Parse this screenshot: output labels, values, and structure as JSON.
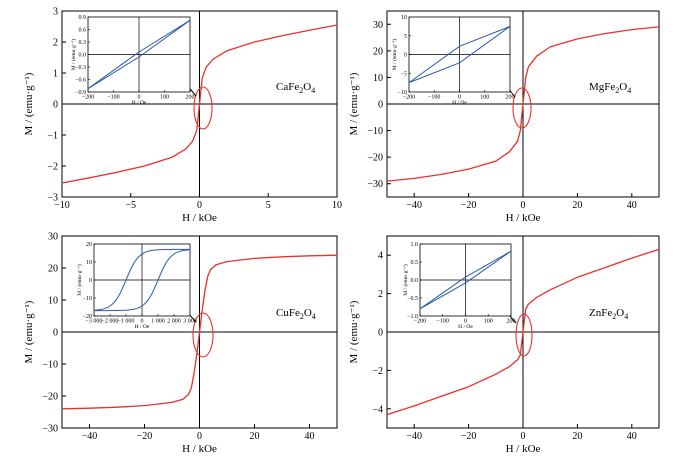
{
  "figure": {
    "ylabel": "M / (emu·g⁻¹)",
    "xlabel": "H / kOe",
    "inset_ylabel": "M / (emu·g⁻¹)",
    "inset_xlabel": "H / Oe"
  },
  "chart_data": [
    {
      "type": "line",
      "panel": "CaFe2O4",
      "material": {
        "main": "CaFe",
        "s1": "2",
        "mid": "O",
        "s2": "4"
      },
      "xlim": [
        -10,
        10
      ],
      "ylim": [
        -3,
        3
      ],
      "xticks": [
        -10,
        -5,
        0,
        5,
        10
      ],
      "yticks": [
        -3,
        -2,
        -1,
        0,
        1,
        2,
        3
      ],
      "colors": {
        "curve": "#e8312a",
        "inset_curve": "#2a5aa8"
      },
      "series": [
        {
          "x": [
            -10,
            -8,
            -6,
            -4,
            -2,
            -1,
            -0.5,
            -0.2,
            0,
            0.2,
            0.5,
            1,
            2,
            4,
            6,
            8,
            10
          ],
          "y": [
            -2.55,
            -2.38,
            -2.2,
            -2.0,
            -1.72,
            -1.45,
            -1.2,
            -0.85,
            0,
            0.85,
            1.2,
            1.45,
            1.72,
            2.0,
            2.2,
            2.38,
            2.55
          ]
        }
      ],
      "inset": {
        "xlim": [
          -200,
          200
        ],
        "ylim": [
          -0.9,
          0.9
        ],
        "xticks": [
          -200,
          -100,
          0,
          100,
          200
        ],
        "yticks": [
          -0.9,
          -0.6,
          -0.3,
          0.0,
          0.3,
          0.6,
          0.9
        ],
        "xtick_labels": [
          "-200",
          "-100",
          "0",
          "100",
          "200"
        ],
        "ytick_labels": [
          "-0.9",
          "-0.6",
          "-0.3",
          "0.0",
          "0.3",
          "0.6",
          "0.9"
        ],
        "loop_width": 0.06,
        "series": [
          {
            "x": [
              -200,
              200
            ],
            "y": [
              -0.82,
              0.82
            ]
          }
        ]
      }
    },
    {
      "type": "line",
      "panel": "MgFe2O4",
      "material": {
        "main": "MgFe",
        "s1": "2",
        "mid": "O",
        "s2": "4"
      },
      "xlim": [
        -50,
        50
      ],
      "ylim": [
        -35,
        35
      ],
      "xticks": [
        -40,
        -20,
        0,
        20,
        40
      ],
      "yticks": [
        -30,
        -20,
        -10,
        0,
        10,
        20,
        30
      ],
      "colors": {
        "curve": "#e8312a",
        "inset_curve": "#2a5aa8"
      },
      "series": [
        {
          "x": [
            -50,
            -40,
            -30,
            -20,
            -10,
            -5,
            -2,
            -1,
            0,
            1,
            2,
            5,
            10,
            20,
            30,
            40,
            50
          ],
          "y": [
            -29,
            -28,
            -26.5,
            -24.5,
            -21.5,
            -18,
            -14,
            -10,
            0,
            10,
            14,
            18,
            21.5,
            24.5,
            26.5,
            28,
            29
          ]
        }
      ],
      "inset": {
        "xlim": [
          -200,
          200
        ],
        "ylim": [
          -10,
          10
        ],
        "xticks": [
          -200,
          -100,
          0,
          100,
          200
        ],
        "yticks": [
          -10,
          -5,
          0,
          5,
          10
        ],
        "xtick_labels": [
          "-200",
          "-100",
          "0",
          "100",
          "200"
        ],
        "ytick_labels": [
          "-10",
          "-5",
          "0",
          "5",
          "10"
        ],
        "loop_width": 2.2,
        "series": [
          {
            "x": [
              -200,
              200
            ],
            "y": [
              -7.5,
              7.5
            ]
          }
        ]
      }
    },
    {
      "type": "line",
      "panel": "CuFe2O4",
      "material": {
        "main": "CuFe",
        "s1": "2",
        "mid": "O",
        "s2": "4"
      },
      "xlim": [
        -50,
        50
      ],
      "ylim": [
        -30,
        30
      ],
      "xticks": [
        -40,
        -20,
        0,
        20,
        40
      ],
      "yticks": [
        -30,
        -20,
        -10,
        0,
        10,
        20,
        30
      ],
      "colors": {
        "curve": "#e8312a",
        "inset_curve": "#2a5aa8"
      },
      "series": [
        {
          "x": [
            -50,
            -40,
            -30,
            -20,
            -10,
            -6,
            -4,
            -3,
            -2,
            -1,
            0,
            1,
            2,
            3,
            4,
            6,
            10,
            20,
            30,
            40,
            50
          ],
          "y": [
            -24,
            -23.8,
            -23.5,
            -23,
            -22,
            -21,
            -19.5,
            -17.5,
            -13,
            -7,
            0,
            7,
            13,
            17.5,
            19.5,
            21,
            22,
            23,
            23.5,
            23.8,
            24
          ]
        }
      ],
      "inset": {
        "xlim": [
          -3000,
          3000
        ],
        "ylim": [
          -20,
          20
        ],
        "xticks": [
          -3000,
          -2000,
          -1000,
          0,
          1000,
          2000,
          3000
        ],
        "yticks": [
          -20,
          -10,
          0,
          10,
          20
        ],
        "xtick_labels": [
          "-3 000",
          "-2 000",
          "-1 000",
          "0",
          "1 000",
          "2 000",
          "3 000"
        ],
        "ytick_labels": [
          "-20",
          "-10",
          "0",
          "10",
          "20"
        ],
        "coercive_field": 1000,
        "saturation": 17,
        "series": [
          {
            "x": [
              -3000,
              3000
            ],
            "y": [
              -17,
              17
            ]
          }
        ]
      }
    },
    {
      "type": "line",
      "panel": "ZnFe2O4",
      "material": {
        "main": "ZnFe",
        "s1": "2",
        "mid": "O",
        "s2": "4"
      },
      "xlim": [
        -50,
        50
      ],
      "ylim": [
        -5,
        5
      ],
      "xticks": [
        -40,
        -20,
        0,
        20,
        40
      ],
      "yticks": [
        -4,
        -2,
        0,
        2,
        4
      ],
      "colors": {
        "curve": "#e8312a",
        "inset_curve": "#2a5aa8"
      },
      "series": [
        {
          "x": [
            -50,
            -40,
            -30,
            -20,
            -10,
            -5,
            -2,
            -1,
            0,
            1,
            2,
            5,
            10,
            20,
            30,
            40,
            50
          ],
          "y": [
            -4.3,
            -3.85,
            -3.35,
            -2.85,
            -2.2,
            -1.8,
            -1.45,
            -1.2,
            0,
            1.2,
            1.45,
            1.8,
            2.2,
            2.85,
            3.35,
            3.85,
            4.3
          ]
        }
      ],
      "inset": {
        "xlim": [
          -200,
          200
        ],
        "ylim": [
          -1.0,
          1.0
        ],
        "xticks": [
          -200,
          -100,
          0,
          100,
          200
        ],
        "yticks": [
          -1.0,
          -0.5,
          0.0,
          0.5,
          1.0
        ],
        "xtick_labels": [
          "-200",
          "-100",
          "0",
          "100",
          "200"
        ],
        "ytick_labels": [
          "-1.0",
          "-0.5",
          "0.0",
          "0.5",
          "1.0"
        ],
        "loop_width": 0.08,
        "series": [
          {
            "x": [
              -200,
              200
            ],
            "y": [
              -0.8,
              0.8
            ]
          }
        ]
      }
    }
  ]
}
